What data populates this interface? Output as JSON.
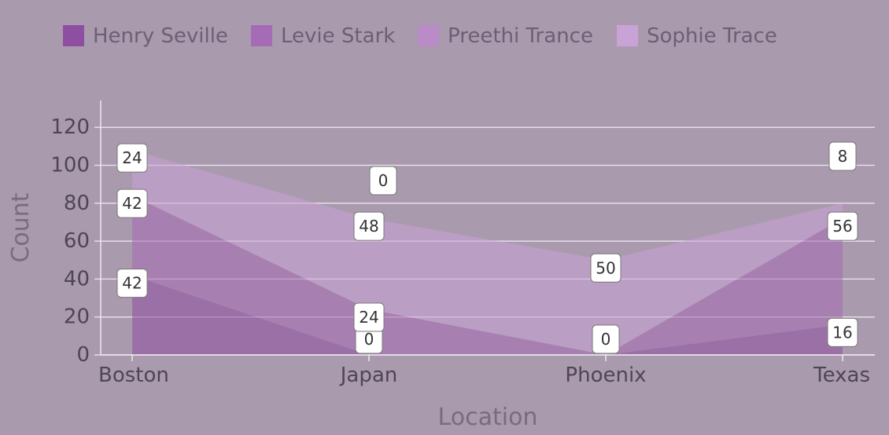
{
  "chart_data": {
    "type": "area",
    "stacked": true,
    "categories": [
      "Boston",
      "Japan",
      "Phoenix",
      "Texas"
    ],
    "series": [
      {
        "name": "Henry Seville",
        "values": [
          42,
          0,
          0,
          16
        ],
        "color": "#8f4fa0"
      },
      {
        "name": "Levie Stark",
        "values": [
          42,
          24,
          0,
          56
        ],
        "color": "#a56cb5"
      },
      {
        "name": "Preethi Trance",
        "values": [
          0,
          0,
          0,
          0
        ],
        "color": "#b98bc7"
      },
      {
        "name": "Sophie Trace",
        "values": [
          24,
          48,
          50,
          8
        ],
        "color": "#caa3d6"
      }
    ],
    "xlabel": "Location",
    "ylabel": "Count",
    "ylim": [
      0,
      135
    ],
    "yticks": [
      0,
      20,
      40,
      60,
      80,
      100,
      120
    ],
    "grid": true,
    "legend_position": "top-left"
  }
}
